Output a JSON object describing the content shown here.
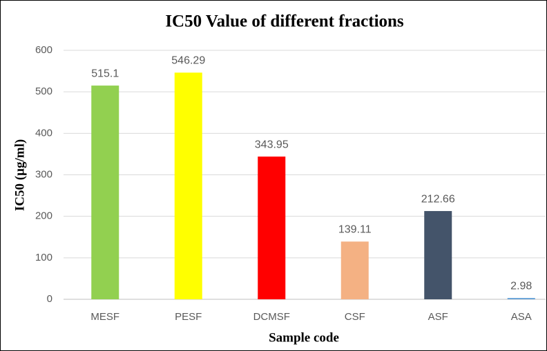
{
  "chart_data": {
    "type": "bar",
    "title": "IC50 Value of different fractions",
    "x_label": "Sample code",
    "y_label": "IC50 (µg/ml)",
    "categories": [
      "MESF",
      "PESF",
      "DCMSF",
      "CSF",
      "ASF",
      "ASA"
    ],
    "values": [
      515.1,
      546.29,
      343.95,
      139.11,
      212.66,
      2.98
    ],
    "colors": [
      "#92d050",
      "#ffff00",
      "#ff0000",
      "#f4b183",
      "#44546a",
      "#5b9bd5"
    ],
    "ylim": [
      0,
      600
    ],
    "yticks": [
      0,
      100,
      200,
      300,
      400,
      500,
      600
    ],
    "grid": true
  }
}
